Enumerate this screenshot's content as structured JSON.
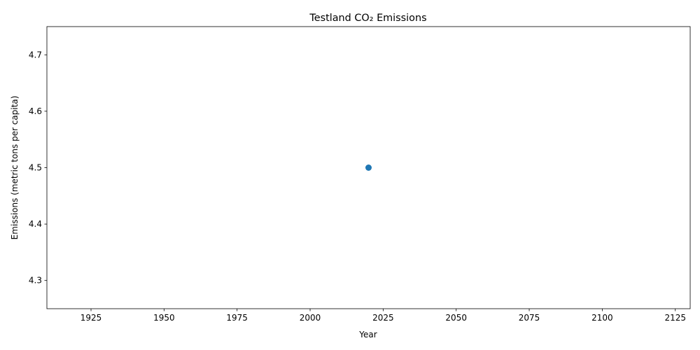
{
  "chart_data": {
    "type": "scatter",
    "title": "Testland CO₂ Emissions",
    "xlabel": "Year",
    "ylabel": "Emissions (metric tons per capita)",
    "xlim": [
      1909.9,
      2130.1
    ],
    "ylim": [
      4.25,
      4.75
    ],
    "xticks": [
      1925,
      1950,
      1975,
      2000,
      2025,
      2050,
      2075,
      2100,
      2125
    ],
    "yticks": [
      4.3,
      4.4,
      4.5,
      4.6,
      4.7
    ],
    "xtick_labels": [
      "1925",
      "1950",
      "1975",
      "2000",
      "2025",
      "2050",
      "2075",
      "2100",
      "2125"
    ],
    "ytick_labels": [
      "4.3",
      "4.4",
      "4.5",
      "4.6",
      "4.7"
    ],
    "grid": false,
    "series": [
      {
        "x": [
          2020
        ],
        "y": [
          4.5
        ],
        "color": "#1f77b4"
      }
    ]
  }
}
